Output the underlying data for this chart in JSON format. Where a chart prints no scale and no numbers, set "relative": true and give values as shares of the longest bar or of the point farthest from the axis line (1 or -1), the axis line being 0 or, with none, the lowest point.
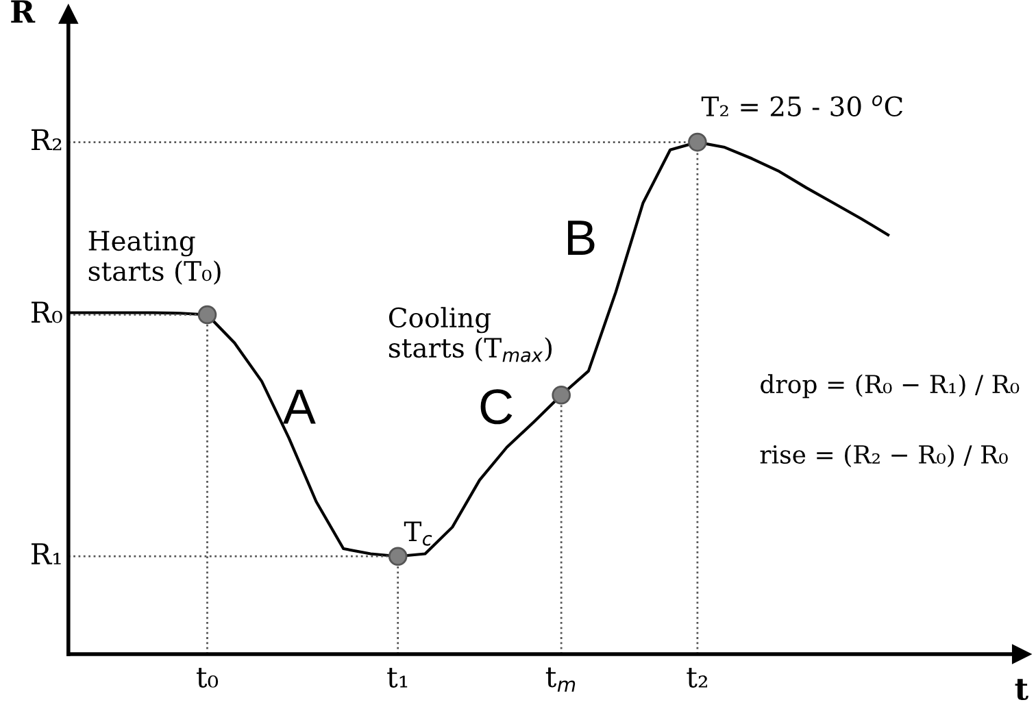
{
  "chart_data": {
    "type": "line",
    "xlabel": "t",
    "ylabel": "R",
    "relative": true,
    "legend": false,
    "categories": [
      null,
      null,
      null,
      null,
      null,
      "t₀",
      null,
      null,
      null,
      null,
      null,
      null,
      "t₁",
      null,
      null,
      null,
      null,
      null,
      "t$_{m}$",
      null,
      null,
      null,
      null,
      "t₂",
      null,
      null,
      null,
      null,
      null,
      null,
      null
    ],
    "series": [
      {
        "color": "#000000",
        "marker": "none",
        "values": [
          0.667,
          0.667,
          0.667,
          0.667,
          0.666,
          0.663,
          0.608,
          0.533,
          0.422,
          0.298,
          0.206,
          0.196,
          0.191,
          0.196,
          0.248,
          0.34,
          0.404,
          0.454,
          0.506,
          0.553,
          0.707,
          0.881,
          0.985,
          1.0,
          0.99,
          0.968,
          0.943,
          0.911,
          0.881,
          0.851,
          0.819
        ]
      },
      {
        "type": "scatter",
        "color": "#808080",
        "marker": "circle",
        "values": [
          null,
          null,
          null,
          null,
          null,
          0.663,
          null,
          null,
          null,
          null,
          null,
          null,
          0.191,
          null,
          null,
          null,
          null,
          null,
          0.506,
          null,
          null,
          null,
          null,
          1.0,
          null,
          null,
          null,
          null,
          null,
          null,
          null
        ]
      }
    ],
    "ref_lines": [
      {
        "axis": "y",
        "value": 0.191,
        "label": "R₁",
        "line_style": "dotted"
      },
      {
        "axis": "y",
        "value": 0.663,
        "label": "R₀",
        "line_style": "dotted"
      },
      {
        "axis": "y",
        "value": 1.0,
        "label": "R₂",
        "line_style": "dotted"
      }
    ],
    "annotations": [
      "Heating\nstarts (T₀)",
      "Cooling\nstarts (T$_{max}$)",
      "T$_{c}$",
      "T₂ = 25 - 30 $^{o}$C",
      "A",
      "C",
      "B",
      "drop = (R₀ − R₁) / R₀",
      "rise = (R₂ − R₀) / R₀"
    ]
  }
}
